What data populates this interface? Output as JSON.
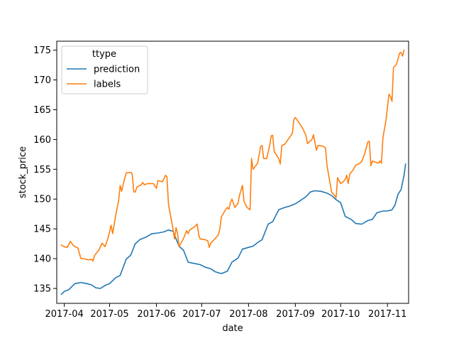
{
  "chart_data": {
    "type": "line",
    "xlabel": "date",
    "ylabel": "stock_price",
    "xlim": [
      "2017-03-27",
      "2017-11-15"
    ],
    "ylim": [
      132.5,
      176.5
    ],
    "grid": false,
    "legend": {
      "title": "ttype",
      "position": "top-left"
    },
    "x_ticks": [
      "2017-04-01",
      "2017-05-01",
      "2017-06-01",
      "2017-07-01",
      "2017-08-01",
      "2017-09-01",
      "2017-10-01",
      "2017-11-01"
    ],
    "x_tick_labels": [
      "2017-04",
      "2017-05",
      "2017-06",
      "2017-07",
      "2017-08",
      "2017-09",
      "2017-10",
      "2017-11"
    ],
    "y_ticks": [
      135,
      140,
      145,
      150,
      155,
      160,
      165,
      170,
      175
    ],
    "y_tick_labels": [
      "135",
      "140",
      "145",
      "150",
      "155",
      "160",
      "165",
      "170",
      "175"
    ],
    "series": [
      {
        "name": "prediction",
        "color": "#1f77b4",
        "points": [
          [
            "2017-03-30",
            134.0
          ],
          [
            "2017-04-01",
            134.5
          ],
          [
            "2017-04-04",
            134.8
          ],
          [
            "2017-04-08",
            135.8
          ],
          [
            "2017-04-12",
            136.0
          ],
          [
            "2017-04-16",
            135.8
          ],
          [
            "2017-04-19",
            135.6
          ],
          [
            "2017-04-22",
            135.1
          ],
          [
            "2017-04-25",
            135.0
          ],
          [
            "2017-04-28",
            135.5
          ],
          [
            "2017-05-01",
            135.8
          ],
          [
            "2017-05-05",
            136.8
          ],
          [
            "2017-05-08",
            137.2
          ],
          [
            "2017-05-12",
            139.9
          ],
          [
            "2017-05-15",
            140.6
          ],
          [
            "2017-05-18",
            142.5
          ],
          [
            "2017-05-21",
            143.2
          ],
          [
            "2017-05-25",
            143.6
          ],
          [
            "2017-05-29",
            144.2
          ],
          [
            "2017-06-02",
            144.3
          ],
          [
            "2017-06-06",
            144.5
          ],
          [
            "2017-06-09",
            144.8
          ],
          [
            "2017-06-12",
            144.6
          ],
          [
            "2017-06-16",
            142.1
          ],
          [
            "2017-06-19",
            141.4
          ],
          [
            "2017-06-22",
            139.4
          ],
          [
            "2017-06-26",
            139.2
          ],
          [
            "2017-06-30",
            139.0
          ],
          [
            "2017-07-03",
            138.6
          ],
          [
            "2017-07-07",
            138.3
          ],
          [
            "2017-07-10",
            137.8
          ],
          [
            "2017-07-14",
            137.5
          ],
          [
            "2017-07-18",
            137.9
          ],
          [
            "2017-07-21",
            139.4
          ],
          [
            "2017-07-25",
            140.1
          ],
          [
            "2017-07-28",
            141.6
          ],
          [
            "2017-08-01",
            141.9
          ],
          [
            "2017-08-04",
            142.1
          ],
          [
            "2017-08-07",
            142.7
          ],
          [
            "2017-08-10",
            143.2
          ],
          [
            "2017-08-14",
            145.8
          ],
          [
            "2017-08-17",
            146.2
          ],
          [
            "2017-08-21",
            148.2
          ],
          [
            "2017-08-25",
            148.6
          ],
          [
            "2017-08-28",
            148.8
          ],
          [
            "2017-09-01",
            149.2
          ],
          [
            "2017-09-04",
            149.7
          ],
          [
            "2017-09-08",
            150.4
          ],
          [
            "2017-09-11",
            151.2
          ],
          [
            "2017-09-14",
            151.4
          ],
          [
            "2017-09-18",
            151.3
          ],
          [
            "2017-09-22",
            151.0
          ],
          [
            "2017-09-25",
            150.6
          ],
          [
            "2017-09-28",
            149.9
          ],
          [
            "2017-10-01",
            149.4
          ],
          [
            "2017-10-04",
            147.1
          ],
          [
            "2017-10-08",
            146.6
          ],
          [
            "2017-10-11",
            145.9
          ],
          [
            "2017-10-15",
            145.8
          ],
          [
            "2017-10-19",
            146.4
          ],
          [
            "2017-10-22",
            146.6
          ],
          [
            "2017-10-25",
            147.7
          ],
          [
            "2017-10-29",
            148.0
          ],
          [
            "2017-11-01",
            148.0
          ],
          [
            "2017-11-04",
            148.2
          ],
          [
            "2017-11-06",
            149.0
          ],
          [
            "2017-11-08",
            150.8
          ],
          [
            "2017-11-10",
            151.6
          ],
          [
            "2017-11-12",
            154.0
          ],
          [
            "2017-11-13",
            155.9
          ]
        ]
      },
      {
        "name": "labels",
        "color": "#ff7f0e",
        "points": [
          [
            "2017-03-30",
            142.3
          ],
          [
            "2017-04-01",
            142.0
          ],
          [
            "2017-04-03",
            141.9
          ],
          [
            "2017-04-05",
            142.9
          ],
          [
            "2017-04-07",
            142.2
          ],
          [
            "2017-04-10",
            141.8
          ],
          [
            "2017-04-12",
            140.0
          ],
          [
            "2017-04-14",
            140.0
          ],
          [
            "2017-04-17",
            139.8
          ],
          [
            "2017-04-19",
            139.9
          ],
          [
            "2017-04-20",
            139.6
          ],
          [
            "2017-04-21",
            140.5
          ],
          [
            "2017-04-24",
            141.5
          ],
          [
            "2017-04-26",
            142.6
          ],
          [
            "2017-04-28",
            142.0
          ],
          [
            "2017-04-30",
            143.5
          ],
          [
            "2017-05-02",
            145.6
          ],
          [
            "2017-05-03",
            144.2
          ],
          [
            "2017-05-05",
            147.2
          ],
          [
            "2017-05-07",
            149.8
          ],
          [
            "2017-05-08",
            152.3
          ],
          [
            "2017-05-09",
            151.3
          ],
          [
            "2017-05-10",
            152.5
          ],
          [
            "2017-05-12",
            154.4
          ],
          [
            "2017-05-15",
            154.5
          ],
          [
            "2017-05-16",
            154.2
          ],
          [
            "2017-05-17",
            151.2
          ],
          [
            "2017-05-18",
            151.2
          ],
          [
            "2017-05-19",
            152.0
          ],
          [
            "2017-05-22",
            152.4
          ],
          [
            "2017-05-23",
            152.8
          ],
          [
            "2017-05-24",
            152.4
          ],
          [
            "2017-05-26",
            152.6
          ],
          [
            "2017-05-30",
            152.6
          ],
          [
            "2017-06-01",
            151.8
          ],
          [
            "2017-06-02",
            153.1
          ],
          [
            "2017-06-05",
            152.9
          ],
          [
            "2017-06-07",
            154.0
          ],
          [
            "2017-06-08",
            153.7
          ],
          [
            "2017-06-09",
            149.1
          ],
          [
            "2017-06-12",
            145.0
          ],
          [
            "2017-06-13",
            143.3
          ],
          [
            "2017-06-14",
            145.2
          ],
          [
            "2017-06-15",
            144.2
          ],
          [
            "2017-06-16",
            142.0
          ],
          [
            "2017-06-19",
            143.4
          ],
          [
            "2017-06-21",
            144.7
          ],
          [
            "2017-06-22",
            144.2
          ],
          [
            "2017-06-23",
            144.8
          ],
          [
            "2017-06-26",
            145.3
          ],
          [
            "2017-06-28",
            145.8
          ],
          [
            "2017-06-29",
            144.0
          ],
          [
            "2017-06-30",
            143.3
          ],
          [
            "2017-07-03",
            143.2
          ],
          [
            "2017-07-05",
            143.0
          ],
          [
            "2017-07-06",
            141.9
          ],
          [
            "2017-07-07",
            142.6
          ],
          [
            "2017-07-10",
            143.4
          ],
          [
            "2017-07-12",
            144.0
          ],
          [
            "2017-07-13",
            145.0
          ],
          [
            "2017-07-14",
            147.0
          ],
          [
            "2017-07-17",
            148.3
          ],
          [
            "2017-07-18",
            148.6
          ],
          [
            "2017-07-19",
            148.3
          ],
          [
            "2017-07-20",
            149.4
          ],
          [
            "2017-07-21",
            150.0
          ],
          [
            "2017-07-23",
            148.6
          ],
          [
            "2017-07-25",
            149.3
          ],
          [
            "2017-07-26",
            150.6
          ],
          [
            "2017-07-28",
            152.3
          ],
          [
            "2017-07-29",
            149.6
          ],
          [
            "2017-07-31",
            148.6
          ],
          [
            "2017-08-02",
            148.2
          ],
          [
            "2017-08-03",
            156.8
          ],
          [
            "2017-08-04",
            155.0
          ],
          [
            "2017-08-07",
            156.0
          ],
          [
            "2017-08-09",
            158.8
          ],
          [
            "2017-08-10",
            159.0
          ],
          [
            "2017-08-11",
            156.8
          ],
          [
            "2017-08-13",
            156.8
          ],
          [
            "2017-08-15",
            159.0
          ],
          [
            "2017-08-16",
            160.6
          ],
          [
            "2017-08-17",
            160.7
          ],
          [
            "2017-08-18",
            158.0
          ],
          [
            "2017-08-21",
            156.8
          ],
          [
            "2017-08-22",
            155.9
          ],
          [
            "2017-08-23",
            159.0
          ],
          [
            "2017-08-25",
            159.2
          ],
          [
            "2017-08-28",
            160.3
          ],
          [
            "2017-08-30",
            161.0
          ],
          [
            "2017-08-31",
            163.3
          ],
          [
            "2017-09-01",
            163.7
          ],
          [
            "2017-09-04",
            162.6
          ],
          [
            "2017-09-06",
            161.8
          ],
          [
            "2017-09-08",
            160.7
          ],
          [
            "2017-09-09",
            159.3
          ],
          [
            "2017-09-12",
            160.0
          ],
          [
            "2017-09-13",
            160.8
          ],
          [
            "2017-09-15",
            158.2
          ],
          [
            "2017-09-16",
            159.0
          ],
          [
            "2017-09-19",
            158.9
          ],
          [
            "2017-09-21",
            158.6
          ],
          [
            "2017-09-22",
            155.6
          ],
          [
            "2017-09-25",
            151.2
          ],
          [
            "2017-09-27",
            150.6
          ],
          [
            "2017-09-28",
            150.2
          ],
          [
            "2017-09-29",
            153.6
          ],
          [
            "2017-10-01",
            152.6
          ],
          [
            "2017-10-03",
            153.0
          ],
          [
            "2017-10-04",
            153.3
          ],
          [
            "2017-10-05",
            154.0
          ],
          [
            "2017-10-06",
            152.6
          ],
          [
            "2017-10-07",
            154.2
          ],
          [
            "2017-10-09",
            154.8
          ],
          [
            "2017-10-11",
            155.7
          ],
          [
            "2017-10-13",
            155.9
          ],
          [
            "2017-10-15",
            156.3
          ],
          [
            "2017-10-17",
            157.7
          ],
          [
            "2017-10-19",
            159.6
          ],
          [
            "2017-10-20",
            159.7
          ],
          [
            "2017-10-21",
            155.6
          ],
          [
            "2017-10-22",
            156.4
          ],
          [
            "2017-10-24",
            156.2
          ],
          [
            "2017-10-26",
            156.0
          ],
          [
            "2017-10-27",
            156.4
          ],
          [
            "2017-10-28",
            156.0
          ],
          [
            "2017-10-29",
            160.3
          ],
          [
            "2017-10-31",
            163.2
          ],
          [
            "2017-11-02",
            167.6
          ],
          [
            "2017-11-03",
            167.2
          ],
          [
            "2017-11-04",
            166.4
          ],
          [
            "2017-11-05",
            172.1
          ],
          [
            "2017-11-07",
            172.6
          ],
          [
            "2017-11-09",
            174.5
          ],
          [
            "2017-11-10",
            174.6
          ],
          [
            "2017-11-11",
            174.0
          ],
          [
            "2017-11-12",
            175.0
          ]
        ]
      }
    ]
  }
}
